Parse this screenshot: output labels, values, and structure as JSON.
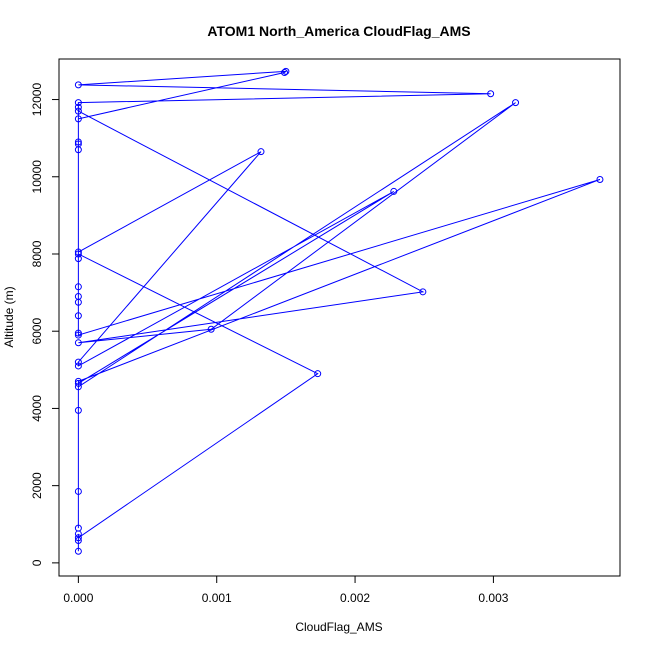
{
  "chart_data": {
    "type": "line",
    "title": "ATOM1 North_America CloudFlag_AMS",
    "xlabel": "CloudFlag_AMS",
    "ylabel": "Altitude (m)",
    "xlim": [
      -0.00014,
      0.003915
    ],
    "ylim": [
      -340,
      13050
    ],
    "xticks": [
      0.0,
      0.001,
      0.002,
      0.003
    ],
    "xtick_labels": [
      "0.000",
      "0.001",
      "0.002",
      "0.003"
    ],
    "yticks": [
      0,
      2000,
      4000,
      6000,
      8000,
      10000,
      12000
    ],
    "ytick_labels": [
      "0",
      "2000",
      "4000",
      "6000",
      "8000",
      "10000",
      "12000"
    ],
    "grid": false,
    "series_color": "#0000ff",
    "series": [
      {
        "markers": "open-circle",
        "points": [
          {
            "x": 0.0,
            "y": 300
          },
          {
            "x": 0.0,
            "y": 580
          },
          {
            "x": 0.0,
            "y": 750
          },
          {
            "x": 0.0,
            "y": 650
          },
          {
            "x": 0.00173,
            "y": 4900
          },
          {
            "x": 0.0,
            "y": 8000
          },
          {
            "x": 0.0,
            "y": 8050
          },
          {
            "x": 0.00132,
            "y": 10650
          },
          {
            "x": 0.0,
            "y": 5200
          },
          {
            "x": 0.0,
            "y": 5100
          },
          {
            "x": 0.00228,
            "y": 9620
          },
          {
            "x": 0.0,
            "y": 4650
          },
          {
            "x": 0.0,
            "y": 4560
          },
          {
            "x": 0.00316,
            "y": 11920
          },
          {
            "x": 0.00096,
            "y": 6050
          },
          {
            "x": 0.0,
            "y": 5700
          },
          {
            "x": 0.00249,
            "y": 7020
          },
          {
            "x": 0.0,
            "y": 11700
          },
          {
            "x": 0.0,
            "y": 11800
          },
          {
            "x": 0.0,
            "y": 11500
          },
          {
            "x": 0.00149,
            "y": 12700
          },
          {
            "x": 0.0015,
            "y": 12730
          },
          {
            "x": 0.0,
            "y": 12380
          },
          {
            "x": 0.00298,
            "y": 12150
          },
          {
            "x": 0.0,
            "y": 11920
          },
          {
            "x": 0.0,
            "y": 10900
          },
          {
            "x": 0.0,
            "y": 10850
          },
          {
            "x": 0.0,
            "y": 10700
          },
          {
            "x": 0.0,
            "y": 7880
          },
          {
            "x": 0.0,
            "y": 7150
          },
          {
            "x": 0.0,
            "y": 6900
          },
          {
            "x": 0.0,
            "y": 6750
          },
          {
            "x": 0.0,
            "y": 6400
          },
          {
            "x": 0.0,
            "y": 5950
          },
          {
            "x": 0.0,
            "y": 5900
          },
          {
            "x": 0.00377,
            "y": 9930
          },
          {
            "x": 0.0,
            "y": 4700
          },
          {
            "x": 0.0,
            "y": 3950
          },
          {
            "x": 0.0,
            "y": 1850
          },
          {
            "x": 0.0,
            "y": 900
          }
        ]
      }
    ]
  }
}
